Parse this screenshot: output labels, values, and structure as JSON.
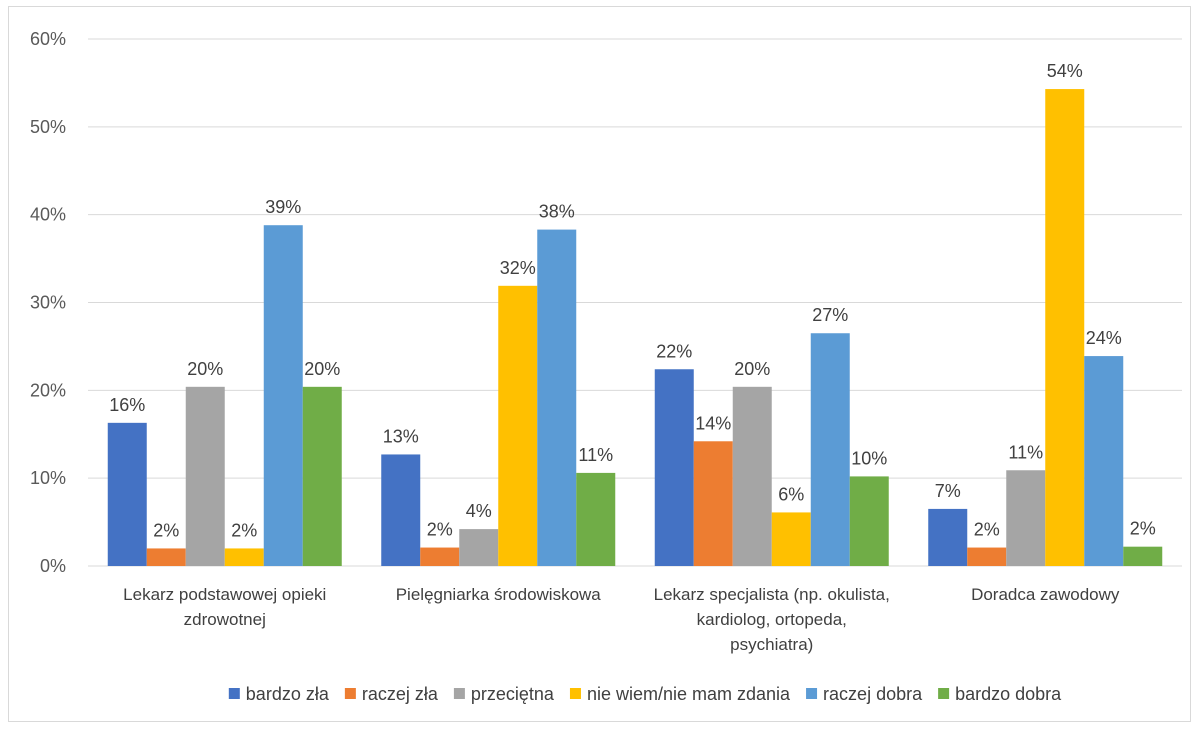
{
  "chart_data": {
    "type": "bar",
    "title": "",
    "xlabel": "",
    "ylabel": "",
    "ylim": [
      0,
      60
    ],
    "yticks": [
      "0%",
      "10%",
      "20%",
      "30%",
      "40%",
      "50%",
      "60%"
    ],
    "grid": true,
    "legend_position": "bottom",
    "categories": [
      [
        "Lekarz podstawowej opieki",
        "zdrowotnej"
      ],
      [
        "Pielęgniarka środowiskowa"
      ],
      [
        "Lekarz specjalista (np. okulista,",
        "kardiolog, ortopeda,",
        "psychiatra)"
      ],
      [
        "Doradca zawodowy"
      ]
    ],
    "series": [
      {
        "name": "bardzo zła",
        "color": "#4472C4",
        "values": [
          16.3,
          12.7,
          22.4,
          6.5
        ],
        "labels": [
          "16%",
          "13%",
          "22%",
          "7%"
        ]
      },
      {
        "name": "raczej zła",
        "color": "#ED7D31",
        "values": [
          2.0,
          2.1,
          14.2,
          2.1
        ],
        "labels": [
          "2%",
          "2%",
          "14%",
          "2%"
        ]
      },
      {
        "name": "przeciętna",
        "color": "#A5A5A5",
        "values": [
          20.4,
          4.2,
          20.4,
          10.9
        ],
        "labels": [
          "20%",
          "4%",
          "20%",
          "11%"
        ]
      },
      {
        "name": "nie wiem/nie mam zdania",
        "color": "#FFC000",
        "values": [
          2.0,
          31.9,
          6.1,
          54.3
        ],
        "labels": [
          "2%",
          "32%",
          "6%",
          "54%"
        ]
      },
      {
        "name": "raczej dobra",
        "color": "#5B9BD5",
        "values": [
          38.8,
          38.3,
          26.5,
          23.9
        ],
        "labels": [
          "39%",
          "38%",
          "27%",
          "24%"
        ]
      },
      {
        "name": "bardzo dobra",
        "color": "#70AD47",
        "values": [
          20.4,
          10.6,
          10.2,
          2.2
        ],
        "labels": [
          "20%",
          "11%",
          "10%",
          "2%"
        ]
      }
    ]
  }
}
